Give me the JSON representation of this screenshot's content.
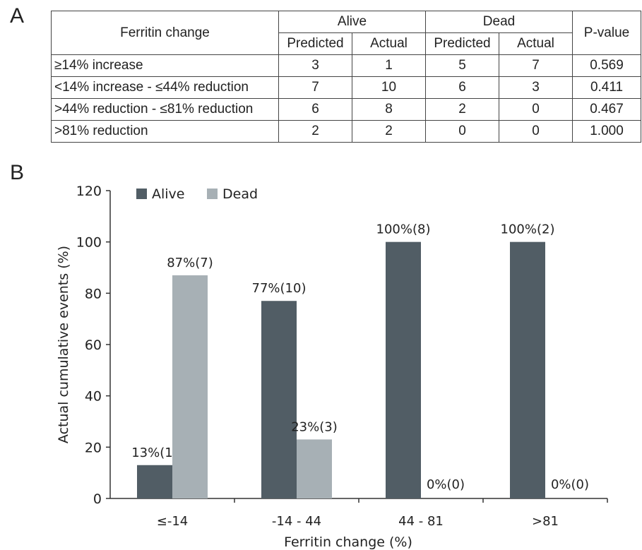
{
  "panels": {
    "a": "A",
    "b": "B"
  },
  "table": {
    "header_col": "Ferritin change",
    "group_alive": "Alive",
    "group_dead": "Dead",
    "pvalue_header": "P-value",
    "sub_predicted": "Predicted",
    "sub_actual": "Actual",
    "rows": [
      {
        "label": "≥14% increase",
        "alive_pred": "3",
        "alive_act": "1",
        "dead_pred": "5",
        "dead_act": "7",
        "p": "0.569"
      },
      {
        "label": "<14% increase - ≤44% reduction",
        "alive_pred": "7",
        "alive_act": "10",
        "dead_pred": "6",
        "dead_act": "3",
        "p": "0.411"
      },
      {
        "label": ">44% reduction - ≤81% reduction",
        "alive_pred": "6",
        "alive_act": "8",
        "dead_pred": "2",
        "dead_act": "0",
        "p": "0.467"
      },
      {
        "label": ">81% reduction",
        "alive_pred": "2",
        "alive_act": "2",
        "dead_pred": "0",
        "dead_act": "0",
        "p": "1.000"
      }
    ]
  },
  "colors": {
    "alive": "#515d65",
    "dead": "#a7b0b5"
  },
  "chart_data": {
    "type": "bar",
    "categories": [
      "≤-14",
      "-14 - 44",
      "44 - 81",
      ">81"
    ],
    "series": [
      {
        "name": "Alive",
        "values": [
          13,
          77,
          100,
          100
        ],
        "labels": [
          "13%(1)",
          "77%(10)",
          "100%(8)",
          "100%(2)"
        ]
      },
      {
        "name": "Dead",
        "values": [
          87,
          23,
          0,
          0
        ],
        "labels": [
          "87%(7)",
          "23%(3)",
          "0%(0)",
          "0%(0)"
        ]
      }
    ],
    "xlabel": "Ferritin change (%)",
    "ylabel": "Actual cumulative events (%)",
    "ylim": [
      0,
      120
    ],
    "yticks": [
      0,
      20,
      40,
      60,
      80,
      100,
      120
    ],
    "grid": false,
    "legend": "top-left"
  }
}
